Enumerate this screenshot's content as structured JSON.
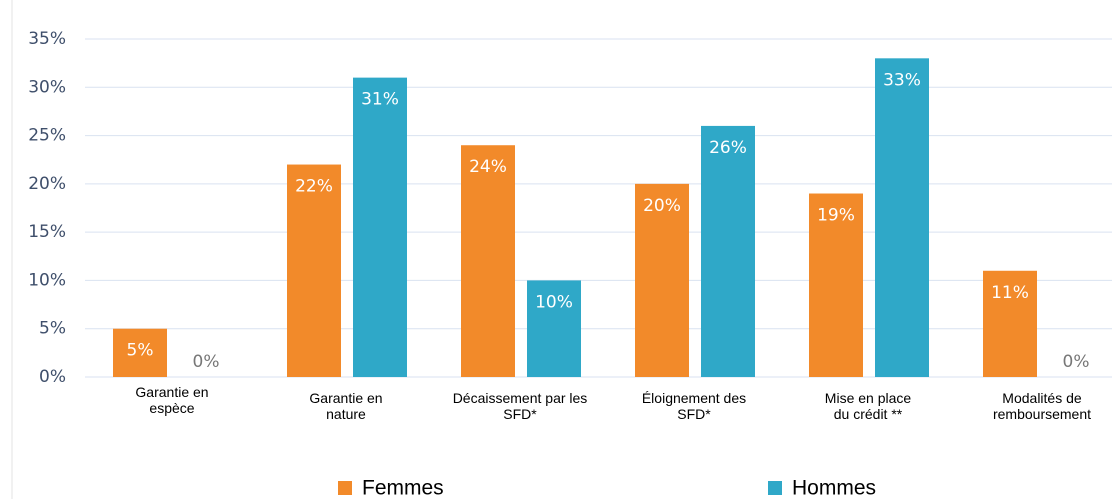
{
  "chart_data": {
    "type": "bar",
    "categories": [
      "Garantie en\nespèce",
      "Garantie en\nnature",
      "Décaissement par les\nSFD*",
      "Éloignement des\nSFD*",
      "Mise en place\ndu crédit **",
      "Modalités de\nremboursement"
    ],
    "series": [
      {
        "name": "Femmes",
        "color": "#f28a2a",
        "values": [
          5,
          22,
          24,
          20,
          19,
          11
        ],
        "value_labels": [
          "5%",
          "22%",
          "24%",
          "20%",
          "19%",
          "11%"
        ]
      },
      {
        "name": "Hommes",
        "color": "#2fa8c8",
        "values": [
          0,
          31,
          10,
          26,
          33,
          0
        ],
        "value_labels": [
          "0%",
          "31%",
          "10%",
          "26%",
          "33%",
          "0%"
        ]
      }
    ],
    "ylim": [
      0,
      35
    ],
    "yticks": [
      {
        "value": 0,
        "label": "0%"
      },
      {
        "value": 5,
        "label": "5%"
      },
      {
        "value": 10,
        "label": "10%"
      },
      {
        "value": 15,
        "label": "15%"
      },
      {
        "value": 20,
        "label": "20%"
      },
      {
        "value": 25,
        "label": "25%"
      },
      {
        "value": 30,
        "label": "30%"
      },
      {
        "value": 35,
        "label": "35%"
      }
    ],
    "grid": true,
    "legend": "bottom"
  }
}
